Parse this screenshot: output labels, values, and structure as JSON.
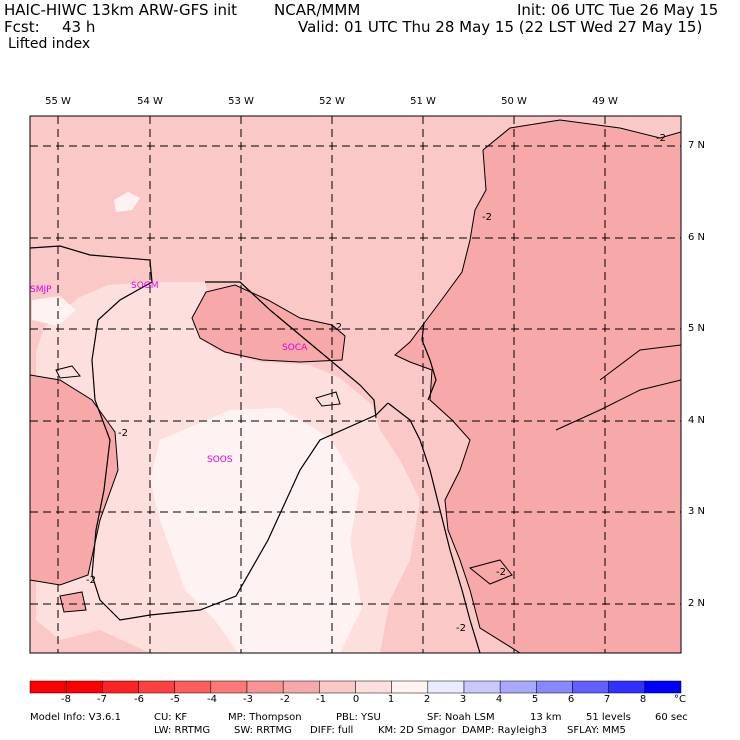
{
  "header": {
    "title_left": "HAIC-HIWC 13km ARW-GFS init",
    "org": "NCAR/MMM",
    "init": "Init: 06 UTC Tue 26 May 15",
    "fcst_label": "Fcst:",
    "fcst_value": "43 h",
    "valid": "Valid: 01 UTC Thu 28 May 15 (22 LST Wed 27 May 15)",
    "field": "Lifted index"
  },
  "map": {
    "lon_labels": [
      "55 W",
      "54 W",
      "53 W",
      "52 W",
      "51 W",
      "50 W",
      "49 W"
    ],
    "lat_labels": [
      "7 N",
      "6 N",
      "5 N",
      "4 N",
      "3 N",
      "2 N"
    ],
    "stations": [
      "SMJP",
      "SOGM",
      "SOCA",
      "SOOS"
    ],
    "contour_label": "-2",
    "colors": {
      "lvl_m3": "#f7a8a8",
      "lvl_m2": "#fbc8c8",
      "lvl_m1": "#fde0de",
      "lvl_0": "#fff2f2"
    }
  },
  "colorbar": {
    "labels": [
      "-8",
      "-7",
      "-6",
      "-5",
      "-4",
      "-3",
      "-2",
      "-1",
      "0",
      "1",
      "2",
      "3",
      "4",
      "5",
      "6",
      "7",
      "8"
    ],
    "unit": "°C",
    "colors": [
      "#ff0000",
      "#ff2222",
      "#ff4040",
      "#ff5c5c",
      "#ff7878",
      "#fa9494",
      "#f7a8a8",
      "#fbc8c8",
      "#fde0de",
      "#fff2f2",
      "#ebebff",
      "#c8c8ff",
      "#a8a8ff",
      "#8888ff",
      "#6060ff",
      "#3030ff",
      "#0000ff"
    ]
  },
  "footer": {
    "line1": [
      "Model Info: V3.6.1",
      "CU: KF",
      "MP: Thompson",
      "PBL: YSU",
      "SF: Noah LSM",
      "13 km",
      "51 levels",
      "60 sec"
    ],
    "line2": [
      "LW: RRTMG",
      "SW: RRTMG",
      "DIFF: full",
      "KM: 2D Smagor",
      "DAMP: Rayleigh3",
      "SFLAY: MM5"
    ]
  }
}
